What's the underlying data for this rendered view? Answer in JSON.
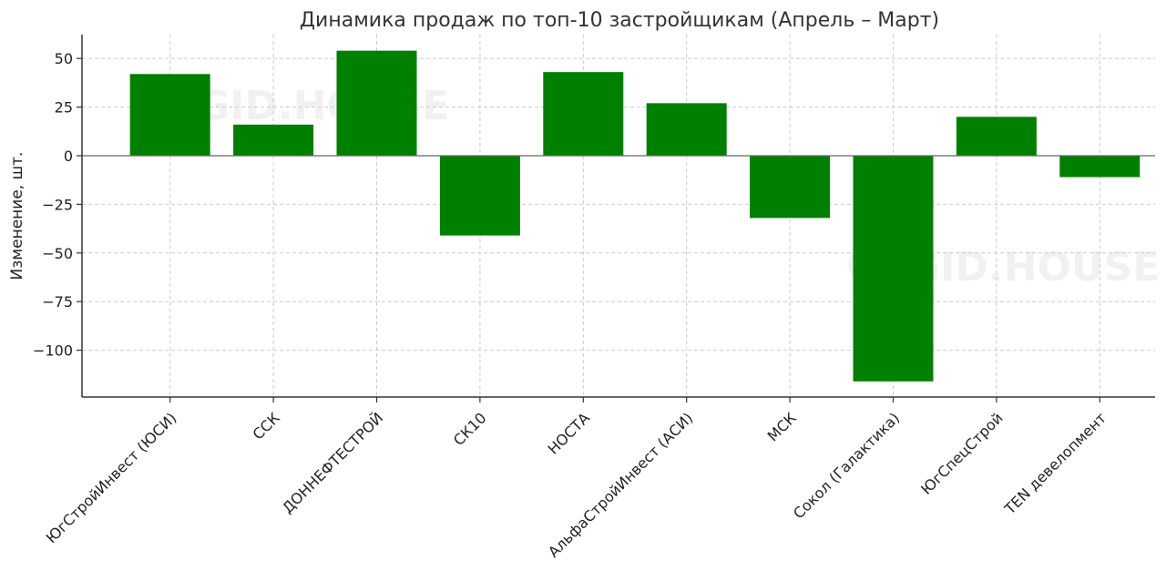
{
  "chart_data": {
    "type": "bar",
    "title": "Динамика продаж по топ-10 застройщикам (Апрель – Март)",
    "xlabel": "",
    "ylabel": "Изменение, шт.",
    "categories": [
      "ЮгСтройИнвест (ЮСИ)",
      "ССК",
      "ДОННЕФТЕСТРОЙ",
      "СК10",
      "НОСТА",
      "АльфаСтройИнвест (АСИ)",
      "МСК",
      "Сокол (Галактика)",
      "ЮгСпецСтрой",
      "TEN девелопмент"
    ],
    "values": [
      42,
      16,
      54,
      -41,
      43,
      27,
      -32,
      -116,
      20,
      -11
    ],
    "ylim": [
      -125,
      62
    ],
    "yticks": [
      50,
      25,
      0,
      -25,
      -50,
      -75,
      -100
    ],
    "ytick_labels": [
      "50",
      "25",
      "0",
      "−25",
      "−50",
      "−75",
      "−100"
    ],
    "bar_color": "#008000",
    "grid": true,
    "watermark": "GID.HOUSE"
  }
}
